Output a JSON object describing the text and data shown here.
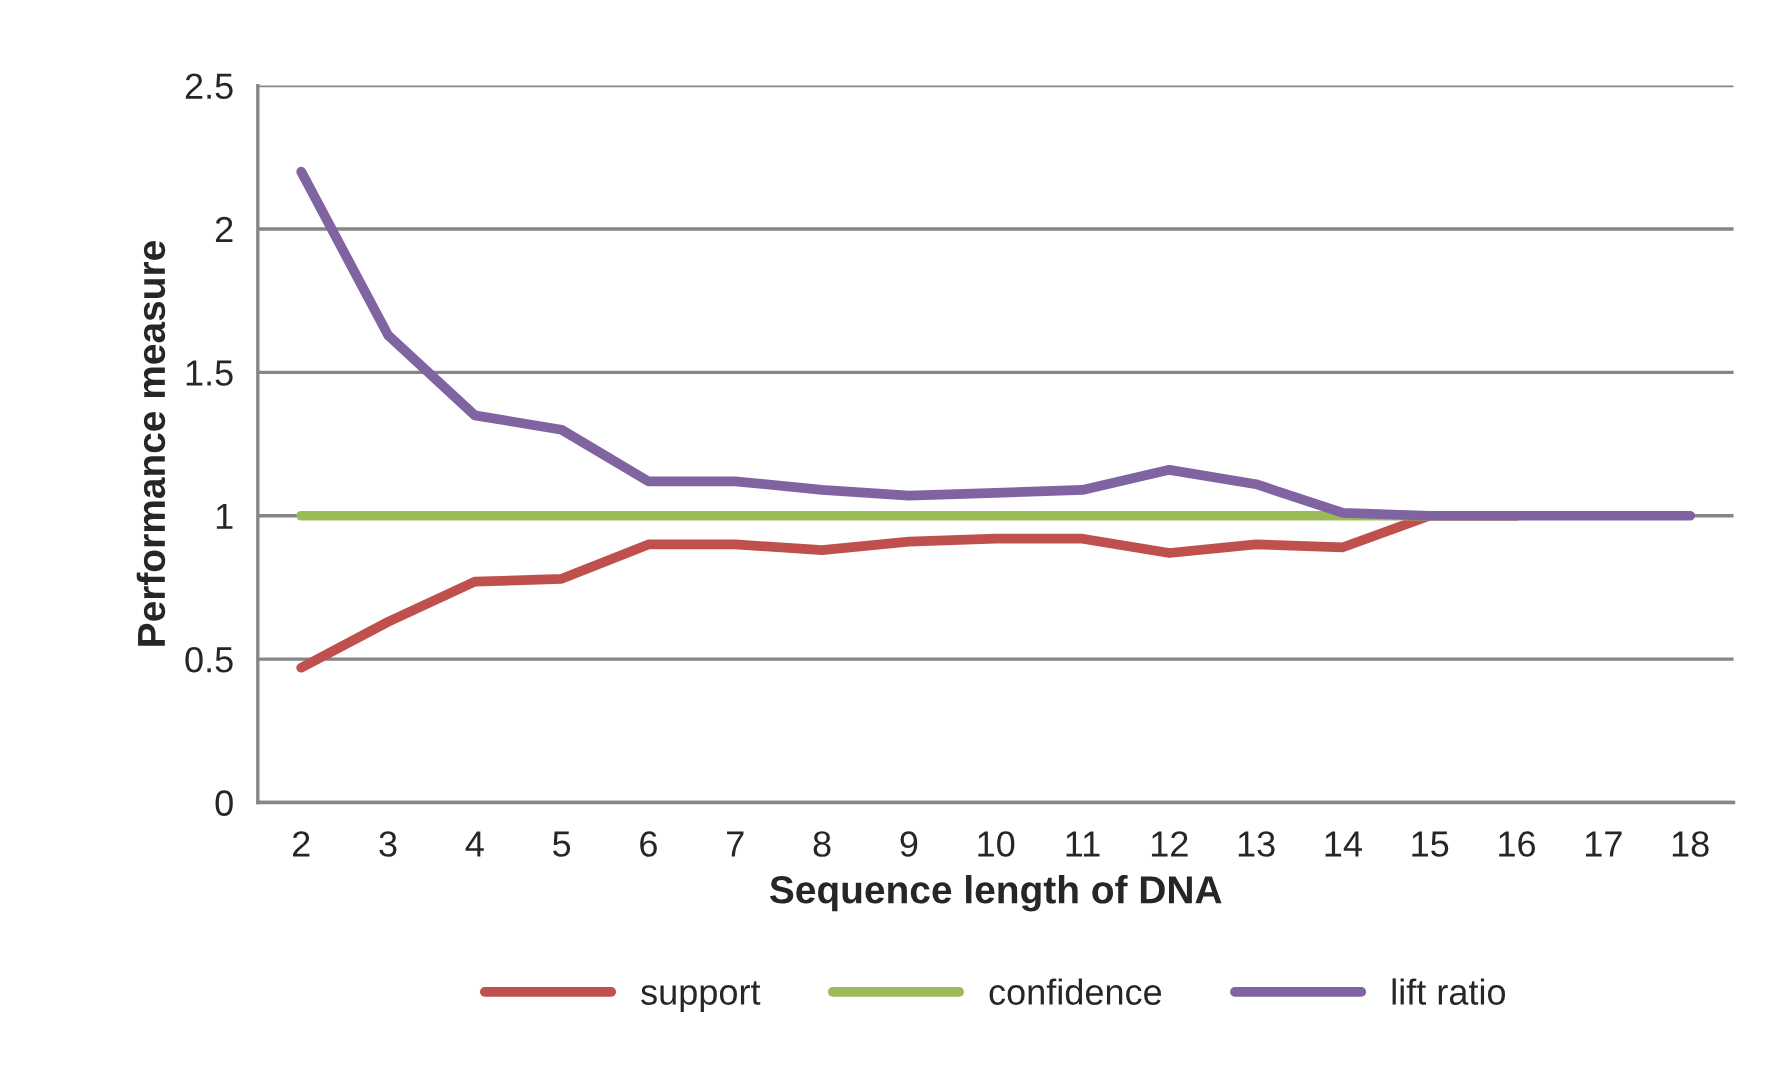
{
  "chart_data": {
    "type": "line",
    "xlabel": "Sequence length of DNA",
    "ylabel": "Performance measure",
    "categories": [
      "2",
      "3",
      "4",
      "5",
      "6",
      "7",
      "8",
      "9",
      "10",
      "11",
      "12",
      "13",
      "14",
      "15",
      "16",
      "17",
      "18"
    ],
    "series": [
      {
        "name": "support",
        "color": "#c0504d",
        "values": [
          0.47,
          0.63,
          0.77,
          0.78,
          0.9,
          0.9,
          0.88,
          0.91,
          0.92,
          0.92,
          0.87,
          0.9,
          0.89,
          1.0,
          1.0,
          null,
          null
        ]
      },
      {
        "name": "confidence",
        "color": "#9bbb59",
        "values": [
          1,
          1,
          1,
          1,
          1,
          1,
          1,
          1,
          1,
          1,
          1,
          1,
          1,
          1,
          1,
          null,
          null
        ]
      },
      {
        "name": "lift ratio",
        "color": "#8064a2",
        "values": [
          2.2,
          1.63,
          1.35,
          1.3,
          1.12,
          1.12,
          1.09,
          1.07,
          1.08,
          1.09,
          1.16,
          1.11,
          1.01,
          1.0,
          1.0,
          1.0,
          1.0
        ]
      }
    ],
    "ylim": [
      0,
      2.5
    ],
    "yticks": [
      0,
      0.5,
      1,
      1.5,
      2,
      2.5
    ],
    "grid": "y",
    "legend": "bottom",
    "marker": "none",
    "line_style": "solid"
  }
}
